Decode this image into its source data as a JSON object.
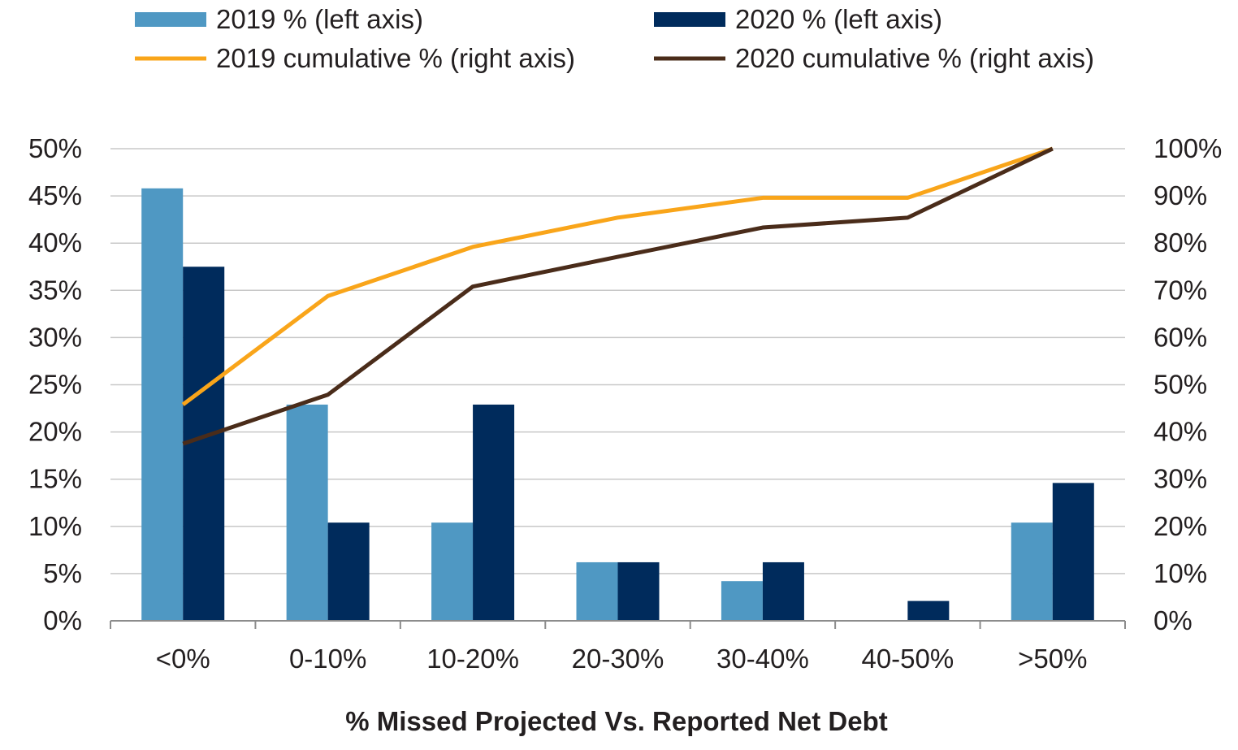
{
  "colors": {
    "bar_2019": "#4f98c3",
    "bar_2020": "#002b5c",
    "line_2019": "#f9a51a",
    "line_2020": "#4a2c1a",
    "grid": "#c8c8c8",
    "axis": "#8c8c8c",
    "text": "#231f20"
  },
  "chart_data": {
    "type": "bar",
    "title": "",
    "xlabel": "% Missed Projected Vs. Reported Net Debt",
    "categories": [
      "<0%",
      "0-10%",
      "10-20%",
      "20-30%",
      "30-40%",
      "40-50%",
      ">50%"
    ],
    "y_left": {
      "lim": [
        0,
        50
      ],
      "ticks": [
        0,
        5,
        10,
        15,
        20,
        25,
        30,
        35,
        40,
        45,
        50
      ],
      "tick_labels": [
        "0%",
        "5%",
        "10%",
        "15%",
        "20%",
        "25%",
        "30%",
        "35%",
        "40%",
        "45%",
        "50%"
      ]
    },
    "y_right": {
      "lim": [
        0,
        100
      ],
      "ticks": [
        0,
        10,
        20,
        30,
        40,
        50,
        60,
        70,
        80,
        90,
        100
      ],
      "tick_labels": [
        "0%",
        "10%",
        "20%",
        "30%",
        "40%",
        "50%",
        "60%",
        "70%",
        "80%",
        "90%",
        "100%"
      ]
    },
    "grid": true,
    "legend_position": "top",
    "series": [
      {
        "name": "2019 % (left axis)",
        "type": "bar",
        "axis": "left",
        "color_key": "bar_2019",
        "values": [
          45.8,
          22.9,
          10.4,
          6.2,
          4.2,
          0,
          10.4
        ]
      },
      {
        "name": "2020 % (left axis)",
        "type": "bar",
        "axis": "left",
        "color_key": "bar_2020",
        "values": [
          37.5,
          10.4,
          22.9,
          6.2,
          6.2,
          2.1,
          14.6
        ]
      },
      {
        "name": "2019 cumulative % (right axis)",
        "type": "line",
        "axis": "right",
        "color_key": "line_2019",
        "values": [
          45.8,
          68.8,
          79.2,
          85.4,
          89.6,
          89.6,
          100
        ]
      },
      {
        "name": "2020 cumulative % (right axis)",
        "type": "line",
        "axis": "right",
        "color_key": "line_2020",
        "values": [
          37.5,
          47.9,
          70.8,
          77.1,
          83.3,
          85.4,
          100
        ]
      }
    ]
  }
}
